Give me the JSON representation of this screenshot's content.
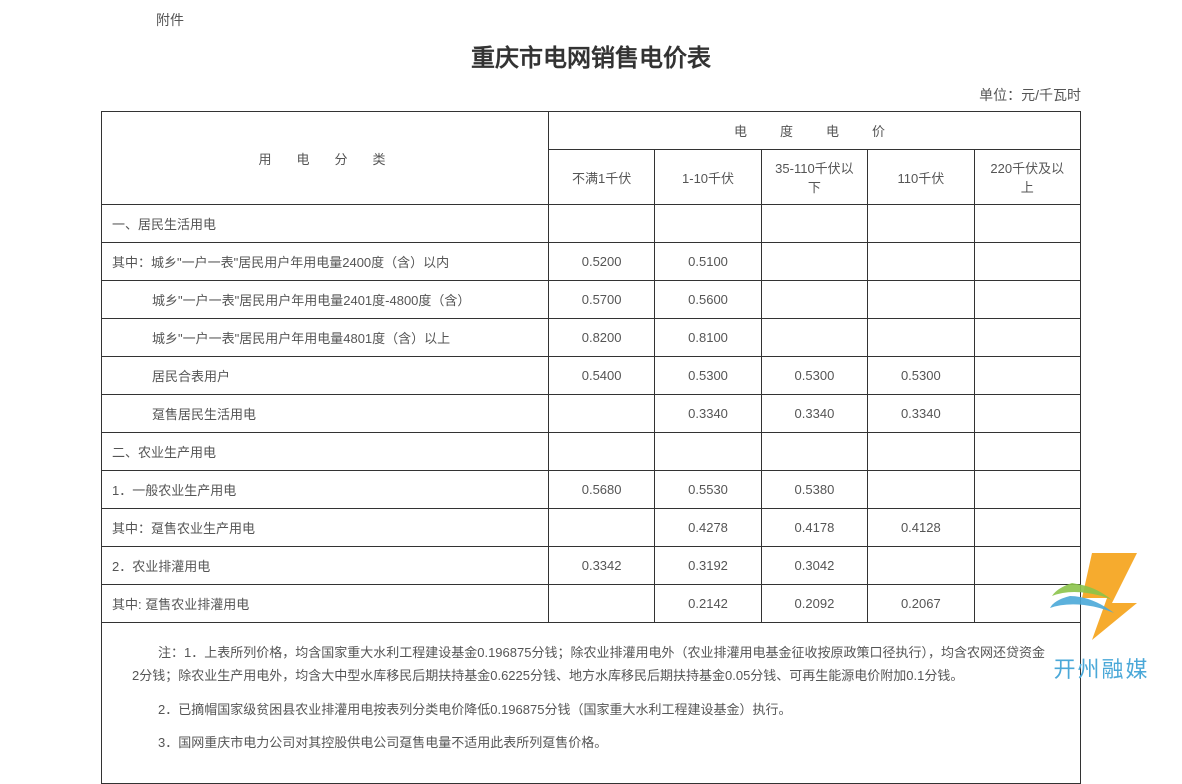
{
  "attachment_label": "附件",
  "title": "重庆市电网销售电价表",
  "unit_label": "单位：元/千瓦时",
  "headers": {
    "category": "用　电　分　类",
    "price_group": "电　度　电　价",
    "cols": [
      "不满1千伏",
      "1-10千伏",
      "35-110千伏以下",
      "110千伏",
      "220千伏及以上"
    ]
  },
  "rows": [
    {
      "label": "一、居民生活用电",
      "indent": "1",
      "values": [
        "",
        "",
        "",
        "",
        ""
      ]
    },
    {
      "label": "其中：城乡\"一户一表\"居民用户年用电量2400度（含）以内",
      "indent": "1",
      "values": [
        "0.5200",
        "0.5100",
        "",
        "",
        ""
      ]
    },
    {
      "label": "城乡\"一户一表\"居民用户年用电量2401度-4800度（含）",
      "indent": "2",
      "values": [
        "0.5700",
        "0.5600",
        "",
        "",
        ""
      ]
    },
    {
      "label": "城乡\"一户一表\"居民用户年用电量4801度（含）以上",
      "indent": "2",
      "values": [
        "0.8200",
        "0.8100",
        "",
        "",
        ""
      ]
    },
    {
      "label": "居民合表用户",
      "indent": "2",
      "values": [
        "0.5400",
        "0.5300",
        "0.5300",
        "0.5300",
        ""
      ]
    },
    {
      "label": "趸售居民生活用电",
      "indent": "2",
      "values": [
        "",
        "0.3340",
        "0.3340",
        "0.3340",
        ""
      ]
    },
    {
      "label": "二、农业生产用电",
      "indent": "1",
      "values": [
        "",
        "",
        "",
        "",
        ""
      ]
    },
    {
      "label": "1．一般农业生产用电",
      "indent": "1",
      "values": [
        "0.5680",
        "0.5530",
        "0.5380",
        "",
        ""
      ]
    },
    {
      "label": "其中：趸售农业生产用电",
      "indent": "1",
      "values": [
        "",
        "0.4278",
        "0.4178",
        "0.4128",
        ""
      ]
    },
    {
      "label": "2．农业排灌用电",
      "indent": "1",
      "values": [
        "0.3342",
        "0.3192",
        "0.3042",
        "",
        ""
      ]
    },
    {
      "label": "其中: 趸售农业排灌用电",
      "indent": "1",
      "values": [
        "",
        "0.2142",
        "0.2092",
        "0.2067",
        ""
      ]
    }
  ],
  "notes": [
    "注：1．上表所列价格，均含国家重大水利工程建设基金0.196875分钱；除农业排灌用电外（农业排灌用电基金征收按原政策口径执行），均含农网还贷资金2分钱；除农业生产用电外，均含大中型水库移民后期扶持基金0.6225分钱、地方水库移民后期扶持基金0.05分钱、可再生能源电价附加0.1分钱。",
    "2．已摘帽国家级贫困县农业排灌用电按表列分类电价降低0.196875分钱（国家重大水利工程建设基金）执行。",
    "3．国网重庆市电力公司对其控股供电公司趸售电量不适用此表所列趸售价格。"
  ],
  "watermark_text": "开州融媒",
  "colors": {
    "border": "#333333",
    "text": "#555555",
    "title": "#333333",
    "watermark_text": "#4aa8d8",
    "logo_orange": "#f5a623",
    "logo_green": "#8bc34a",
    "logo_blue": "#4aa8d8"
  }
}
